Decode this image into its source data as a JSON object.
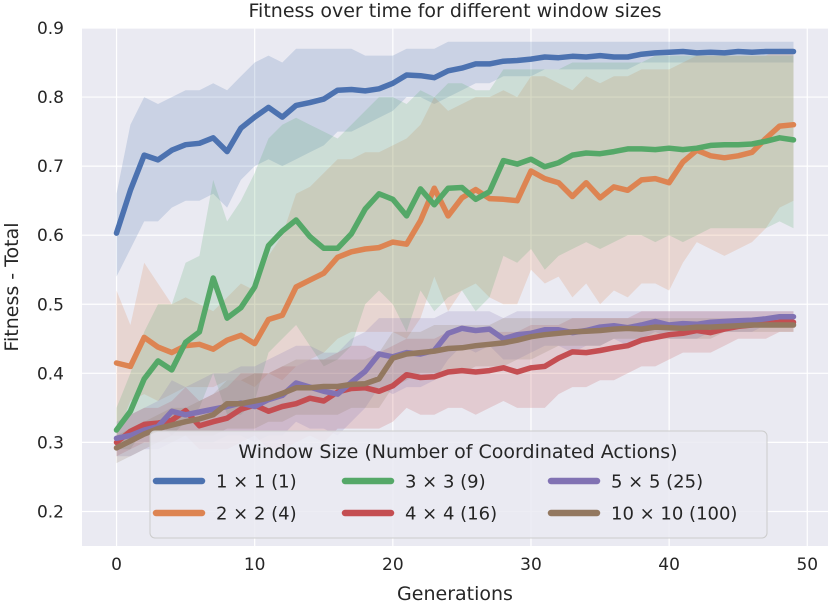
{
  "chart_data": {
    "type": "line",
    "title": "Fitness over time for different window sizes",
    "xlabel": "Generations",
    "ylabel": "Fitness - Total",
    "xlim": [
      -2.5,
      51.5
    ],
    "ylim": [
      0.15,
      0.9
    ],
    "xticks": [
      0,
      10,
      20,
      30,
      40,
      50
    ],
    "yticks": [
      0.2,
      0.3,
      0.4,
      0.5,
      0.6,
      0.7,
      0.8,
      0.9
    ],
    "xtick_labels": [
      "0",
      "10",
      "20",
      "30",
      "40",
      "50"
    ],
    "ytick_labels": [
      "0.2",
      "0.3",
      "0.4",
      "0.5",
      "0.6",
      "0.7",
      "0.8",
      "0.9"
    ],
    "grid": true,
    "legend": {
      "title": "Window Size (Number of Coordinated Actions)",
      "location": "lower center",
      "columns": 3
    },
    "series": [
      {
        "name": "1 × 1 (1)",
        "color": "#4c72b0",
        "values": [
          0.603,
          0.665,
          0.716,
          0.709,
          0.723,
          0.731,
          0.733,
          0.741,
          0.721,
          0.755,
          0.771,
          0.785,
          0.771,
          0.788,
          0.792,
          0.797,
          0.81,
          0.811,
          0.809,
          0.812,
          0.82,
          0.832,
          0.831,
          0.828,
          0.838,
          0.842,
          0.848,
          0.848,
          0.852,
          0.853,
          0.855,
          0.858,
          0.857,
          0.859,
          0.858,
          0.86,
          0.858,
          0.858,
          0.862,
          0.864,
          0.865,
          0.866,
          0.864,
          0.865,
          0.864,
          0.866,
          0.865,
          0.866,
          0.866,
          0.866
        ],
        "band_upper": [
          0.66,
          0.76,
          0.8,
          0.79,
          0.8,
          0.81,
          0.81,
          0.82,
          0.81,
          0.83,
          0.85,
          0.86,
          0.85,
          0.87,
          0.87,
          0.87,
          0.87,
          0.87,
          0.86,
          0.86,
          0.86,
          0.87,
          0.87,
          0.87,
          0.88,
          0.88,
          0.88,
          0.88,
          0.88,
          0.88,
          0.88,
          0.88,
          0.88,
          0.88,
          0.88,
          0.88,
          0.88,
          0.88,
          0.88,
          0.88,
          0.88,
          0.88,
          0.88,
          0.88,
          0.88,
          0.88,
          0.88,
          0.88,
          0.88,
          0.88
        ],
        "band_lower": [
          0.54,
          0.58,
          0.62,
          0.62,
          0.64,
          0.65,
          0.65,
          0.66,
          0.64,
          0.68,
          0.7,
          0.71,
          0.7,
          0.71,
          0.72,
          0.73,
          0.75,
          0.75,
          0.76,
          0.77,
          0.78,
          0.8,
          0.8,
          0.79,
          0.8,
          0.81,
          0.82,
          0.82,
          0.83,
          0.83,
          0.83,
          0.84,
          0.84,
          0.84,
          0.84,
          0.84,
          0.84,
          0.84,
          0.85,
          0.85,
          0.85,
          0.85,
          0.85,
          0.85,
          0.85,
          0.85,
          0.85,
          0.85,
          0.85,
          0.85
        ]
      },
      {
        "name": "2 × 2 (4)",
        "color": "#dd8452",
        "values": [
          0.415,
          0.41,
          0.452,
          0.438,
          0.43,
          0.44,
          0.442,
          0.435,
          0.448,
          0.455,
          0.443,
          0.478,
          0.484,
          0.525,
          0.535,
          0.545,
          0.568,
          0.576,
          0.58,
          0.582,
          0.59,
          0.587,
          0.621,
          0.668,
          0.628,
          0.654,
          0.666,
          0.653,
          0.652,
          0.65,
          0.693,
          0.682,
          0.676,
          0.656,
          0.676,
          0.654,
          0.67,
          0.665,
          0.68,
          0.682,
          0.676,
          0.706,
          0.723,
          0.715,
          0.712,
          0.715,
          0.72,
          0.74,
          0.758,
          0.76
        ],
        "band_upper": [
          0.52,
          0.47,
          0.56,
          0.53,
          0.5,
          0.51,
          0.5,
          0.49,
          0.51,
          0.53,
          0.52,
          0.57,
          0.6,
          0.66,
          0.67,
          0.69,
          0.71,
          0.71,
          0.72,
          0.72,
          0.73,
          0.74,
          0.76,
          0.8,
          0.78,
          0.79,
          0.8,
          0.8,
          0.81,
          0.8,
          0.83,
          0.83,
          0.82,
          0.81,
          0.83,
          0.82,
          0.83,
          0.83,
          0.84,
          0.84,
          0.84,
          0.85,
          0.86,
          0.86,
          0.86,
          0.86,
          0.86,
          0.86,
          0.87,
          0.87
        ],
        "band_lower": [
          0.31,
          0.36,
          0.37,
          0.36,
          0.37,
          0.38,
          0.38,
          0.38,
          0.39,
          0.39,
          0.38,
          0.4,
          0.39,
          0.41,
          0.42,
          0.43,
          0.45,
          0.46,
          0.46,
          0.46,
          0.46,
          0.45,
          0.48,
          0.54,
          0.49,
          0.52,
          0.53,
          0.51,
          0.5,
          0.5,
          0.55,
          0.53,
          0.54,
          0.51,
          0.53,
          0.5,
          0.52,
          0.51,
          0.53,
          0.53,
          0.52,
          0.56,
          0.59,
          0.58,
          0.57,
          0.58,
          0.59,
          0.61,
          0.64,
          0.65
        ]
      },
      {
        "name": "3 × 3 (9)",
        "color": "#55a868",
        "values": [
          0.318,
          0.345,
          0.392,
          0.418,
          0.405,
          0.445,
          0.46,
          0.538,
          0.48,
          0.495,
          0.525,
          0.585,
          0.606,
          0.622,
          0.598,
          0.581,
          0.581,
          0.602,
          0.638,
          0.66,
          0.652,
          0.628,
          0.667,
          0.644,
          0.668,
          0.669,
          0.652,
          0.663,
          0.708,
          0.703,
          0.71,
          0.699,
          0.705,
          0.716,
          0.719,
          0.718,
          0.721,
          0.725,
          0.725,
          0.724,
          0.726,
          0.724,
          0.726,
          0.73,
          0.731,
          0.731,
          0.732,
          0.736,
          0.741,
          0.738
        ],
        "band_upper": [
          0.35,
          0.4,
          0.46,
          0.5,
          0.5,
          0.56,
          0.57,
          0.68,
          0.62,
          0.65,
          0.69,
          0.74,
          0.76,
          0.77,
          0.76,
          0.75,
          0.74,
          0.76,
          0.78,
          0.8,
          0.8,
          0.79,
          0.81,
          0.8,
          0.82,
          0.82,
          0.81,
          0.81,
          0.84,
          0.84,
          0.84,
          0.84,
          0.84,
          0.85,
          0.85,
          0.85,
          0.85,
          0.85,
          0.85,
          0.86,
          0.86,
          0.86,
          0.86,
          0.86,
          0.86,
          0.86,
          0.86,
          0.86,
          0.86,
          0.86
        ],
        "band_lower": [
          0.29,
          0.29,
          0.32,
          0.33,
          0.31,
          0.33,
          0.35,
          0.4,
          0.34,
          0.34,
          0.36,
          0.43,
          0.45,
          0.47,
          0.44,
          0.41,
          0.42,
          0.44,
          0.5,
          0.52,
          0.5,
          0.46,
          0.52,
          0.49,
          0.51,
          0.52,
          0.49,
          0.51,
          0.57,
          0.56,
          0.58,
          0.55,
          0.57,
          0.58,
          0.59,
          0.58,
          0.59,
          0.6,
          0.6,
          0.59,
          0.6,
          0.59,
          0.6,
          0.61,
          0.61,
          0.61,
          0.61,
          0.61,
          0.62,
          0.61
        ]
      },
      {
        "name": "4 × 4 (16)",
        "color": "#c44e52",
        "values": [
          0.3,
          0.316,
          0.326,
          0.328,
          0.332,
          0.346,
          0.324,
          0.33,
          0.335,
          0.348,
          0.354,
          0.345,
          0.352,
          0.356,
          0.364,
          0.36,
          0.373,
          0.378,
          0.379,
          0.374,
          0.382,
          0.398,
          0.394,
          0.395,
          0.402,
          0.404,
          0.402,
          0.404,
          0.408,
          0.402,
          0.408,
          0.41,
          0.422,
          0.431,
          0.43,
          0.433,
          0.437,
          0.44,
          0.448,
          0.452,
          0.456,
          0.458,
          0.462,
          0.459,
          0.464,
          0.468,
          0.47,
          0.472,
          0.474,
          0.474
        ],
        "band_upper": [
          0.32,
          0.34,
          0.35,
          0.35,
          0.36,
          0.38,
          0.36,
          0.37,
          0.38,
          0.4,
          0.4,
          0.4,
          0.41,
          0.41,
          0.42,
          0.42,
          0.43,
          0.44,
          0.44,
          0.43,
          0.44,
          0.45,
          0.45,
          0.45,
          0.46,
          0.46,
          0.46,
          0.46,
          0.46,
          0.46,
          0.47,
          0.47,
          0.47,
          0.48,
          0.48,
          0.48,
          0.48,
          0.48,
          0.49,
          0.49,
          0.49,
          0.49,
          0.49,
          0.49,
          0.49,
          0.49,
          0.49,
          0.49,
          0.49,
          0.49
        ],
        "band_lower": [
          0.28,
          0.29,
          0.3,
          0.3,
          0.31,
          0.31,
          0.29,
          0.29,
          0.29,
          0.3,
          0.31,
          0.29,
          0.29,
          0.3,
          0.31,
          0.3,
          0.32,
          0.32,
          0.32,
          0.32,
          0.33,
          0.35,
          0.34,
          0.34,
          0.35,
          0.35,
          0.34,
          0.35,
          0.36,
          0.35,
          0.35,
          0.35,
          0.37,
          0.38,
          0.38,
          0.39,
          0.39,
          0.4,
          0.41,
          0.41,
          0.42,
          0.43,
          0.43,
          0.43,
          0.44,
          0.45,
          0.45,
          0.45,
          0.46,
          0.46
        ]
      },
      {
        "name": "5 × 5 (25)",
        "color": "#8172b3",
        "values": [
          0.306,
          0.31,
          0.318,
          0.323,
          0.345,
          0.34,
          0.344,
          0.348,
          0.352,
          0.357,
          0.352,
          0.362,
          0.368,
          0.386,
          0.38,
          0.374,
          0.37,
          0.387,
          0.403,
          0.428,
          0.424,
          0.43,
          0.428,
          0.433,
          0.458,
          0.465,
          0.462,
          0.464,
          0.45,
          0.456,
          0.458,
          0.463,
          0.463,
          0.459,
          0.462,
          0.467,
          0.469,
          0.466,
          0.47,
          0.475,
          0.47,
          0.472,
          0.471,
          0.474,
          0.475,
          0.476,
          0.477,
          0.479,
          0.482,
          0.482
        ],
        "band_upper": [
          0.33,
          0.34,
          0.35,
          0.36,
          0.39,
          0.38,
          0.39,
          0.4,
          0.4,
          0.41,
          0.41,
          0.42,
          0.43,
          0.44,
          0.44,
          0.43,
          0.43,
          0.45,
          0.46,
          0.48,
          0.48,
          0.48,
          0.48,
          0.48,
          0.49,
          0.49,
          0.49,
          0.49,
          0.48,
          0.49,
          0.49,
          0.49,
          0.49,
          0.49,
          0.49,
          0.49,
          0.49,
          0.49,
          0.49,
          0.49,
          0.49,
          0.49,
          0.49,
          0.49,
          0.49,
          0.49,
          0.49,
          0.49,
          0.49,
          0.49
        ],
        "band_lower": [
          0.28,
          0.28,
          0.29,
          0.29,
          0.3,
          0.3,
          0.3,
          0.3,
          0.31,
          0.31,
          0.3,
          0.31,
          0.31,
          0.33,
          0.32,
          0.32,
          0.31,
          0.33,
          0.35,
          0.38,
          0.37,
          0.38,
          0.38,
          0.39,
          0.42,
          0.44,
          0.43,
          0.44,
          0.42,
          0.42,
          0.43,
          0.44,
          0.44,
          0.43,
          0.44,
          0.44,
          0.45,
          0.44,
          0.45,
          0.46,
          0.45,
          0.45,
          0.45,
          0.46,
          0.46,
          0.46,
          0.46,
          0.47,
          0.47,
          0.47
        ]
      },
      {
        "name": "10 × 10 (100)",
        "color": "#937860",
        "values": [
          0.292,
          0.302,
          0.312,
          0.32,
          0.325,
          0.33,
          0.334,
          0.34,
          0.356,
          0.356,
          0.36,
          0.364,
          0.371,
          0.379,
          0.379,
          0.381,
          0.381,
          0.384,
          0.385,
          0.392,
          0.422,
          0.428,
          0.43,
          0.432,
          0.436,
          0.437,
          0.44,
          0.442,
          0.444,
          0.448,
          0.453,
          0.456,
          0.458,
          0.46,
          0.461,
          0.462,
          0.464,
          0.465,
          0.464,
          0.467,
          0.466,
          0.465,
          0.467,
          0.467,
          0.468,
          0.469,
          0.47,
          0.47,
          0.47,
          0.47
        ],
        "band_upper": [
          0.31,
          0.32,
          0.33,
          0.34,
          0.35,
          0.35,
          0.36,
          0.37,
          0.39,
          0.39,
          0.4,
          0.4,
          0.41,
          0.42,
          0.42,
          0.42,
          0.42,
          0.42,
          0.42,
          0.43,
          0.46,
          0.46,
          0.46,
          0.47,
          0.47,
          0.47,
          0.47,
          0.47,
          0.48,
          0.48,
          0.48,
          0.48,
          0.48,
          0.48,
          0.48,
          0.48,
          0.48,
          0.48,
          0.48,
          0.48,
          0.48,
          0.48,
          0.48,
          0.48,
          0.48,
          0.48,
          0.48,
          0.48,
          0.48,
          0.48
        ],
        "band_lower": [
          0.27,
          0.28,
          0.29,
          0.3,
          0.3,
          0.31,
          0.31,
          0.31,
          0.32,
          0.32,
          0.32,
          0.33,
          0.33,
          0.34,
          0.34,
          0.34,
          0.34,
          0.35,
          0.35,
          0.35,
          0.38,
          0.39,
          0.4,
          0.4,
          0.4,
          0.4,
          0.41,
          0.41,
          0.41,
          0.42,
          0.42,
          0.43,
          0.44,
          0.44,
          0.44,
          0.44,
          0.45,
          0.45,
          0.45,
          0.45,
          0.45,
          0.45,
          0.45,
          0.45,
          0.46,
          0.46,
          0.46,
          0.46,
          0.46,
          0.46
        ]
      }
    ]
  }
}
